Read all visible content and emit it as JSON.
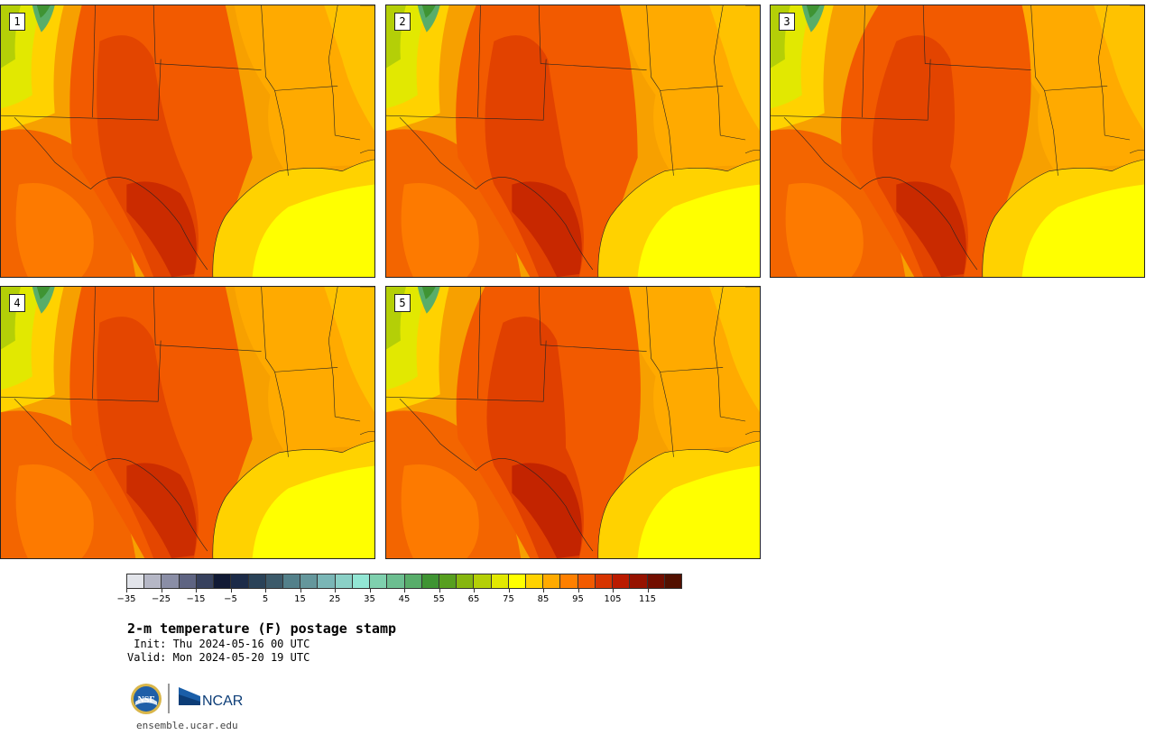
{
  "title": "2-m temperature (F) postage stamp",
  "init_line": " Init: Thu 2024-05-16 00 UTC",
  "valid_line": "Valid: Mon 2024-05-20 19 UTC",
  "site": "ensemble.ucar.edu",
  "logos": {
    "nsf_text": "NSF",
    "ncar_text": "NCAR"
  },
  "panels": [
    {
      "label": "1"
    },
    {
      "label": "2"
    },
    {
      "label": "3"
    },
    {
      "label": "4"
    },
    {
      "label": "5"
    }
  ],
  "colorbar": {
    "tick_labels": [
      "−35",
      "−25",
      "−15",
      "−5",
      "5",
      "15",
      "25",
      "35",
      "45",
      "55",
      "65",
      "75",
      "85",
      "95",
      "105",
      "115"
    ],
    "colors": [
      "#e2e4ea",
      "#b5b7c6",
      "#8a8ea6",
      "#5e6482",
      "#37415e",
      "#111a35",
      "#1c2b48",
      "#2a4258",
      "#3c5a6a",
      "#53808a",
      "#65979c",
      "#7ab6b6",
      "#8ad0c6",
      "#92e6d4",
      "#7fd0ae",
      "#6cbe90",
      "#58ad6a",
      "#3f9433",
      "#579f1f",
      "#86b60f",
      "#b4cf07",
      "#e2e801",
      "#ffff00",
      "#ffd200",
      "#ffaa00",
      "#ff8000",
      "#f25a00",
      "#d73400",
      "#ba1b00",
      "#961200",
      "#720e00",
      "#521000"
    ]
  }
}
